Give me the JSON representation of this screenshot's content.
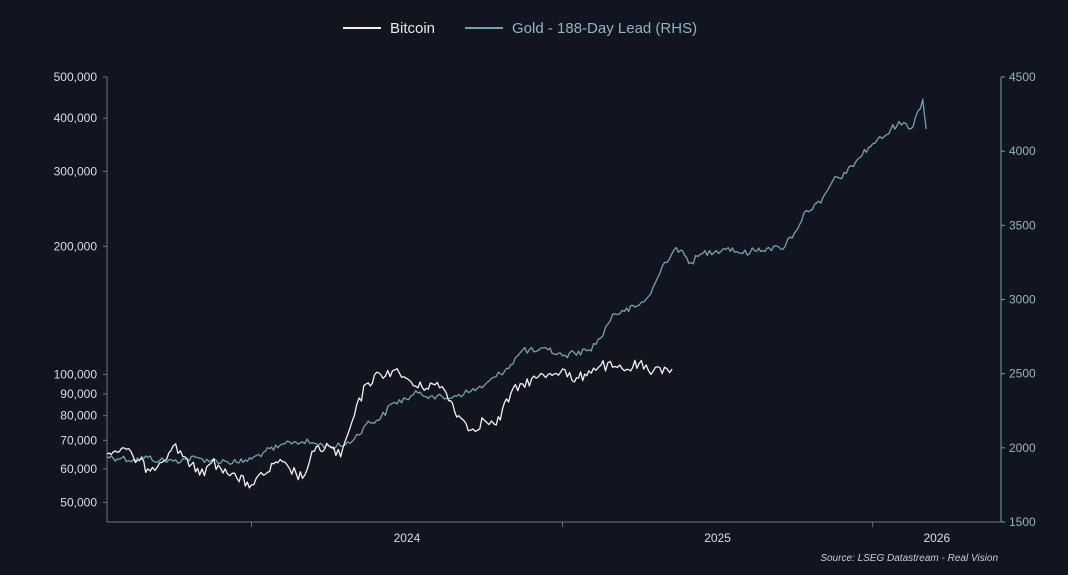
{
  "colors": {
    "background": "#121420",
    "bitcoin": "#f2f2f2",
    "gold": "#6fa3ad",
    "axis_left": "#6f7480",
    "axis_right": "#6fa3ad"
  },
  "legend": {
    "bitcoin": "Bitcoin",
    "gold": "Gold - 188-Day Lead (RHS)"
  },
  "source": "Source: LSEG Datastream - Real Vision",
  "chart_data": {
    "type": "line",
    "title": "",
    "xlabel": "",
    "ylabel": "",
    "x_tick_labels": [
      "2024",
      "2025",
      "2026"
    ],
    "xlim": [
      "2023-07-15",
      "2026-06-01"
    ],
    "legend_position": "top-center",
    "grid": false,
    "left_axis": {
      "scale": "log",
      "ylim": [
        45000,
        500000
      ],
      "tick_values": [
        50000,
        60000,
        70000,
        80000,
        90000,
        100000,
        200000,
        300000,
        400000,
        500000
      ],
      "tick_labels": [
        "50,000",
        "60,000",
        "70,000",
        "80,000",
        "90,000",
        "100,000",
        "200,000",
        "300,000",
        "400,000",
        "500,000"
      ]
    },
    "right_axis": {
      "scale": "linear",
      "ylim": [
        1500,
        4500
      ],
      "tick_values": [
        1500,
        2000,
        2500,
        3000,
        3500,
        4000,
        4500
      ],
      "tick_labels": [
        "1500",
        "2000",
        "2500",
        "3000",
        "3500",
        "4000",
        "4500"
      ]
    },
    "series": [
      {
        "name": "Bitcoin",
        "axis": "left",
        "x": [
          "2023-07-15",
          "2023-08-01",
          "2023-08-15",
          "2023-09-01",
          "2023-09-15",
          "2023-10-01",
          "2023-10-15",
          "2023-11-01",
          "2023-11-15",
          "2023-12-01",
          "2023-12-15",
          "2024-01-01",
          "2024-01-15",
          "2024-02-01",
          "2024-02-15",
          "2024-03-01",
          "2024-03-15",
          "2024-04-01",
          "2024-04-15",
          "2024-05-01",
          "2024-05-15",
          "2024-06-01",
          "2024-06-15",
          "2024-07-01",
          "2024-07-15",
          "2024-08-01",
          "2024-08-15",
          "2024-09-01",
          "2024-09-15",
          "2024-10-01",
          "2024-10-15",
          "2024-11-01",
          "2024-11-15",
          "2024-12-01",
          "2024-12-15",
          "2025-01-01",
          "2025-01-15",
          "2025-02-01",
          "2025-02-15",
          "2025-03-01",
          "2025-03-15",
          "2025-04-01",
          "2025-04-15",
          "2025-05-01",
          "2025-05-10"
        ],
        "values": [
          65000,
          67000,
          64000,
          60000,
          62000,
          68000,
          64000,
          58000,
          62000,
          60000,
          57000,
          55000,
          58000,
          62000,
          60000,
          57000,
          66000,
          68000,
          64000,
          80000,
          95000,
          100000,
          102000,
          98000,
          93000,
          95000,
          92000,
          80000,
          74000,
          78000,
          76000,
          90000,
          95000,
          98000,
          100000,
          103000,
          96000,
          102000,
          105000,
          104000,
          102000,
          106000,
          100000,
          104000,
          103000
        ]
      },
      {
        "name": "Gold - 188-Day Lead (RHS)",
        "axis": "right",
        "x": [
          "2023-07-15",
          "2023-08-01",
          "2023-08-15",
          "2023-09-01",
          "2023-09-15",
          "2023-10-01",
          "2023-10-15",
          "2023-11-01",
          "2023-11-15",
          "2023-12-01",
          "2023-12-15",
          "2024-01-01",
          "2024-01-15",
          "2024-02-01",
          "2024-02-15",
          "2024-03-01",
          "2024-03-15",
          "2024-04-01",
          "2024-04-15",
          "2024-05-01",
          "2024-05-15",
          "2024-06-01",
          "2024-06-15",
          "2024-07-01",
          "2024-07-15",
          "2024-08-01",
          "2024-08-15",
          "2024-09-01",
          "2024-09-15",
          "2024-10-01",
          "2024-10-15",
          "2024-11-01",
          "2024-11-15",
          "2024-12-01",
          "2024-12-15",
          "2025-01-01",
          "2025-01-15",
          "2025-02-01",
          "2025-02-15",
          "2025-03-01",
          "2025-03-15",
          "2025-04-01",
          "2025-04-15",
          "2025-05-01",
          "2025-05-15",
          "2025-06-01",
          "2025-06-15",
          "2025-07-01",
          "2025-07-15",
          "2025-08-01",
          "2025-08-15",
          "2025-09-01",
          "2025-09-15",
          "2025-10-01",
          "2025-10-15",
          "2025-11-01",
          "2025-11-15",
          "2025-12-01",
          "2025-12-15",
          "2026-01-01",
          "2026-01-15",
          "2026-02-01",
          "2026-02-15",
          "2026-03-01",
          "2026-03-05"
        ],
        "values": [
          1940,
          1930,
          1920,
          1935,
          1915,
          1910,
          1925,
          1930,
          1915,
          1910,
          1900,
          1925,
          1970,
          2000,
          2040,
          2040,
          2030,
          2010,
          2010,
          2060,
          2160,
          2200,
          2300,
          2330,
          2370,
          2350,
          2330,
          2360,
          2380,
          2420,
          2480,
          2560,
          2660,
          2650,
          2660,
          2620,
          2640,
          2660,
          2740,
          2900,
          2920,
          2960,
          3040,
          3250,
          3350,
          3250,
          3310,
          3330,
          3350,
          3310,
          3330,
          3350,
          3340,
          3450,
          3600,
          3650,
          3800,
          3850,
          3950,
          4050,
          4100,
          4200,
          4150,
          4350,
          4150
        ]
      }
    ]
  }
}
